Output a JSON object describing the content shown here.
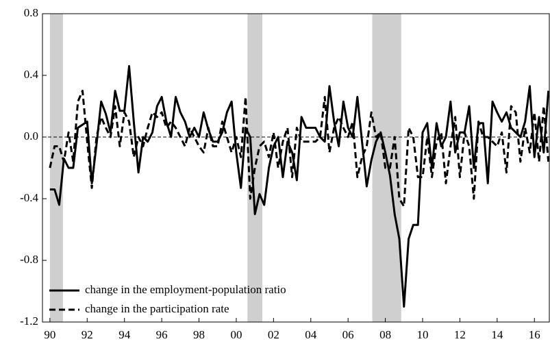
{
  "chart_data": {
    "type": "line",
    "legend": "bottom-left",
    "zero_line": true,
    "shaded_periods": [
      [
        1990.0,
        1990.7
      ],
      [
        2000.6,
        2001.4
      ],
      [
        2007.3,
        2008.85
      ]
    ],
    "xlim": [
      1989.6,
      2016.8
    ],
    "ylim": [
      -1.2,
      0.8
    ],
    "yticks": [
      -1.2,
      -0.8,
      -0.4,
      {
        "value": 0,
        "label": "0.0"
      },
      0.4,
      0.8
    ],
    "xticks": [
      {
        "value": 1990,
        "label": "90"
      },
      {
        "value": 1992,
        "label": "92"
      },
      {
        "value": 1994,
        "label": "94"
      },
      {
        "value": 1996,
        "label": "96"
      },
      {
        "value": 1998,
        "label": "98"
      },
      {
        "value": 2000,
        "label": "00"
      },
      {
        "value": 2002,
        "label": "02"
      },
      {
        "value": 2004,
        "label": "04"
      },
      {
        "value": 2006,
        "label": "06"
      },
      {
        "value": 2008,
        "label": "08"
      },
      {
        "value": 2010,
        "label": "10"
      },
      {
        "value": 2012,
        "label": "12"
      },
      {
        "value": 2014,
        "label": "14"
      },
      {
        "value": 2016,
        "label": "16"
      }
    ],
    "x": [
      1990,
      1990.25,
      1990.5,
      1990.75,
      1991,
      1991.25,
      1991.5,
      1991.75,
      1992,
      1992.25,
      1992.5,
      1992.75,
      1993,
      1993.25,
      1993.5,
      1993.75,
      1994,
      1994.25,
      1994.5,
      1994.75,
      1995,
      1995.25,
      1995.5,
      1995.75,
      1996,
      1996.25,
      1996.5,
      1996.75,
      1997,
      1997.25,
      1997.5,
      1997.75,
      1998,
      1998.25,
      1998.5,
      1998.75,
      1999,
      1999.25,
      1999.5,
      1999.75,
      2000,
      2000.25,
      2000.5,
      2000.75,
      2001,
      2001.25,
      2001.5,
      2001.75,
      2002,
      2002.25,
      2002.5,
      2002.75,
      2003,
      2003.25,
      2003.5,
      2003.75,
      2004,
      2004.25,
      2004.5,
      2004.75,
      2005,
      2005.25,
      2005.5,
      2005.75,
      2006,
      2006.25,
      2006.5,
      2006.75,
      2007,
      2007.25,
      2007.5,
      2007.75,
      2008,
      2008.25,
      2008.5,
      2008.75,
      2009,
      2009.25,
      2009.5,
      2009.75,
      2010,
      2010.25,
      2010.5,
      2010.75,
      2011,
      2011.25,
      2011.5,
      2011.75,
      2012,
      2012.25,
      2012.5,
      2012.75,
      2013,
      2013.25,
      2013.5,
      2013.75,
      2014,
      2014.25,
      2014.5,
      2014.75,
      2015,
      2015.25,
      2015.5,
      2015.75,
      2016,
      2016.25,
      2016.5,
      2016.75
    ],
    "series": [
      {
        "name": "change in the employment-population ratio",
        "color": "#000000",
        "dashed": false,
        "values": [
          -0.34,
          -0.34,
          -0.44,
          -0.14,
          -0.2,
          -0.2,
          0.06,
          0.08,
          0.1,
          -0.3,
          -0.05,
          0.23,
          0.15,
          0.03,
          0.3,
          0.17,
          0.17,
          0.46,
          0.1,
          -0.23,
          0.0,
          -0.03,
          0.03,
          0.2,
          0.26,
          0.1,
          0.0,
          0.26,
          0.16,
          0.1,
          0.0,
          0.06,
          0.0,
          0.16,
          0.05,
          -0.03,
          -0.03,
          0.03,
          0.16,
          0.23,
          -0.1,
          -0.33,
          0.06,
          0.0,
          -0.5,
          -0.37,
          -0.44,
          -0.2,
          -0.06,
          0.0,
          -0.26,
          -0.03,
          -0.1,
          -0.28,
          0.13,
          0.06,
          0.06,
          0.06,
          0.0,
          -0.03,
          0.33,
          0.1,
          -0.06,
          0.23,
          0.06,
          0.0,
          0.26,
          -0.03,
          -0.32,
          -0.15,
          -0.03,
          0.03,
          -0.1,
          -0.25,
          -0.5,
          -0.66,
          -1.1,
          -0.66,
          -0.57,
          -0.57,
          0.03,
          0.09,
          -0.2,
          0.09,
          -0.06,
          0.0,
          0.23,
          -0.1,
          0.03,
          0.03,
          0.2,
          -0.2,
          0.09,
          0.09,
          -0.3,
          0.23,
          0.16,
          0.1,
          0.16,
          0.06,
          0.03,
          0.0,
          0.1,
          0.33,
          -0.13,
          0.13,
          -0.1,
          0.3
        ]
      },
      {
        "name": "change in the participation rate",
        "color": "#000000",
        "dashed": true,
        "values": [
          -0.2,
          -0.06,
          -0.06,
          -0.16,
          0.03,
          -0.16,
          0.23,
          0.3,
          -0.03,
          -0.33,
          0.0,
          0.13,
          0.06,
          0.0,
          0.2,
          -0.06,
          0.16,
          0.1,
          -0.13,
          0.0,
          -0.06,
          0.06,
          0.16,
          0.13,
          0.16,
          0.06,
          0.1,
          0.06,
          0.0,
          -0.06,
          0.06,
          0.0,
          -0.06,
          -0.1,
          0.06,
          -0.06,
          -0.06,
          0.1,
          0.0,
          -0.1,
          0.0,
          -0.13,
          0.26,
          -0.4,
          -0.2,
          -0.06,
          -0.03,
          -0.13,
          0.03,
          -0.2,
          -0.03,
          0.06,
          -0.26,
          0.06,
          -0.03,
          -0.03,
          -0.03,
          -0.03,
          0.0,
          0.26,
          -0.1,
          0.06,
          0.13,
          0.06,
          0.0,
          0.1,
          -0.26,
          -0.13,
          -0.06,
          0.16,
          0.0,
          0.03,
          -0.2,
          -0.2,
          0.0,
          -0.4,
          -0.45,
          0.06,
          0.0,
          -0.26,
          -0.26,
          0.0,
          -0.26,
          -0.03,
          0.03,
          -0.3,
          -0.06,
          0.13,
          -0.26,
          0.03,
          -0.06,
          -0.4,
          0.1,
          0.0,
          0.0,
          -0.03,
          -0.06,
          0.03,
          -0.23,
          0.2,
          0.16,
          -0.16,
          0.06,
          -0.1,
          0.16,
          -0.16,
          0.2,
          -0.16
        ]
      }
    ]
  }
}
